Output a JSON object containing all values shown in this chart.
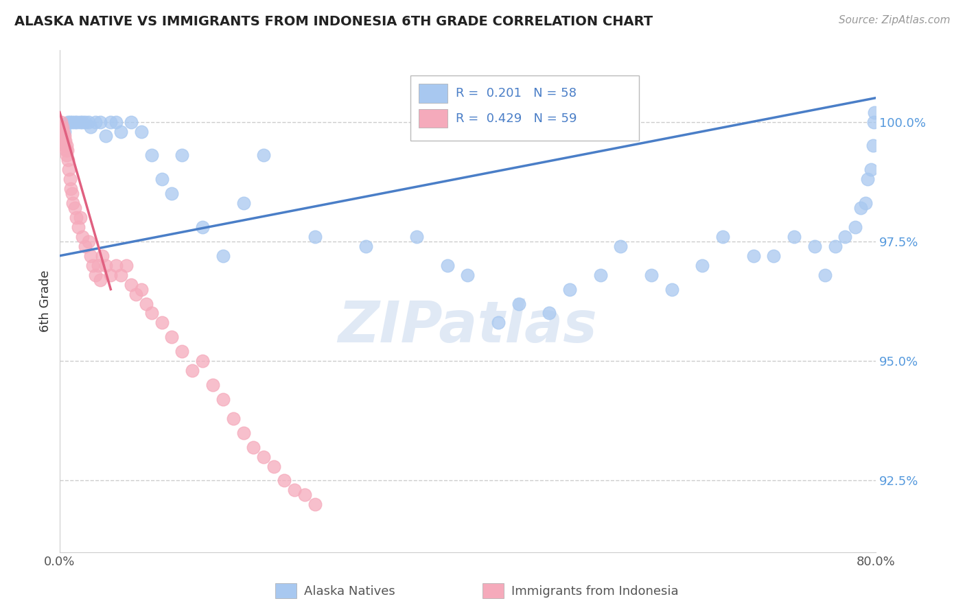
{
  "title": "ALASKA NATIVE VS IMMIGRANTS FROM INDONESIA 6TH GRADE CORRELATION CHART",
  "source": "Source: ZipAtlas.com",
  "ylabel": "6th Grade",
  "blue_R": 0.201,
  "blue_N": 58,
  "pink_R": 0.429,
  "pink_N": 59,
  "blue_color": "#A8C8F0",
  "pink_color": "#F5AABB",
  "blue_line_color": "#4A7EC7",
  "pink_line_color": "#E06080",
  "legend1_label": "Alaska Natives",
  "legend2_label": "Immigrants from Indonesia",
  "xlim": [
    0.0,
    80.0
  ],
  "ylim": [
    91.0,
    101.5
  ],
  "y_ticks": [
    92.5,
    95.0,
    97.5,
    100.0
  ],
  "y_tick_labels": [
    "92.5%",
    "95.0%",
    "97.5%",
    "100.0%"
  ],
  "x_ticks": [
    0,
    80
  ],
  "x_tick_labels": [
    "0.0%",
    "80.0%"
  ],
  "blue_scatter_x": [
    0.3,
    0.5,
    0.8,
    1.0,
    1.2,
    1.5,
    1.7,
    2.0,
    2.2,
    2.5,
    2.8,
    3.0,
    3.5,
    4.0,
    4.5,
    5.0,
    5.5,
    6.0,
    7.0,
    8.0,
    9.0,
    10.0,
    11.0,
    12.0,
    14.0,
    16.0,
    18.0,
    20.0,
    25.0,
    30.0,
    35.0,
    38.0,
    40.0,
    43.0,
    45.0,
    48.0,
    50.0,
    53.0,
    55.0,
    58.0,
    60.0,
    63.0,
    65.0,
    68.0,
    70.0,
    72.0,
    74.0,
    75.0,
    76.0,
    77.0,
    78.0,
    78.5,
    79.0,
    79.2,
    79.5,
    79.7,
    79.8,
    79.9
  ],
  "blue_scatter_y": [
    99.9,
    99.8,
    100.0,
    100.0,
    100.0,
    100.0,
    100.0,
    100.0,
    100.0,
    100.0,
    100.0,
    99.9,
    100.0,
    100.0,
    99.7,
    100.0,
    100.0,
    99.8,
    100.0,
    99.8,
    99.3,
    98.8,
    98.5,
    99.3,
    97.8,
    97.2,
    98.3,
    99.3,
    97.6,
    97.4,
    97.6,
    97.0,
    96.8,
    95.8,
    96.2,
    96.0,
    96.5,
    96.8,
    97.4,
    96.8,
    96.5,
    97.0,
    97.6,
    97.2,
    97.2,
    97.6,
    97.4,
    96.8,
    97.4,
    97.6,
    97.8,
    98.2,
    98.3,
    98.8,
    99.0,
    99.5,
    100.0,
    100.2
  ],
  "pink_scatter_x": [
    0.1,
    0.15,
    0.2,
    0.25,
    0.3,
    0.35,
    0.4,
    0.45,
    0.5,
    0.55,
    0.6,
    0.65,
    0.7,
    0.75,
    0.8,
    0.9,
    1.0,
    1.1,
    1.2,
    1.3,
    1.5,
    1.6,
    1.8,
    2.0,
    2.2,
    2.5,
    2.8,
    3.0,
    3.2,
    3.5,
    3.8,
    4.0,
    4.2,
    4.5,
    5.0,
    5.5,
    6.0,
    6.5,
    7.0,
    7.5,
    8.0,
    8.5,
    9.0,
    10.0,
    11.0,
    12.0,
    13.0,
    14.0,
    15.0,
    16.0,
    17.0,
    18.0,
    19.0,
    20.0,
    21.0,
    22.0,
    23.0,
    24.0,
    25.0
  ],
  "pink_scatter_y": [
    99.9,
    100.0,
    99.8,
    99.9,
    99.7,
    99.8,
    99.6,
    99.7,
    99.5,
    99.6,
    99.4,
    99.5,
    99.3,
    99.4,
    99.2,
    99.0,
    98.8,
    98.6,
    98.5,
    98.3,
    98.2,
    98.0,
    97.8,
    98.0,
    97.6,
    97.4,
    97.5,
    97.2,
    97.0,
    96.8,
    97.0,
    96.7,
    97.2,
    97.0,
    96.8,
    97.0,
    96.8,
    97.0,
    96.6,
    96.4,
    96.5,
    96.2,
    96.0,
    95.8,
    95.5,
    95.2,
    94.8,
    95.0,
    94.5,
    94.2,
    93.8,
    93.5,
    93.2,
    93.0,
    92.8,
    92.5,
    92.3,
    92.2,
    92.0
  ],
  "blue_trendline_x": [
    0.0,
    80.0
  ],
  "blue_trendline_y": [
    97.2,
    100.5
  ],
  "pink_trendline_x": [
    0.0,
    5.0
  ],
  "pink_trendline_y": [
    100.2,
    96.5
  ],
  "watermark_text": "ZIPatlas"
}
